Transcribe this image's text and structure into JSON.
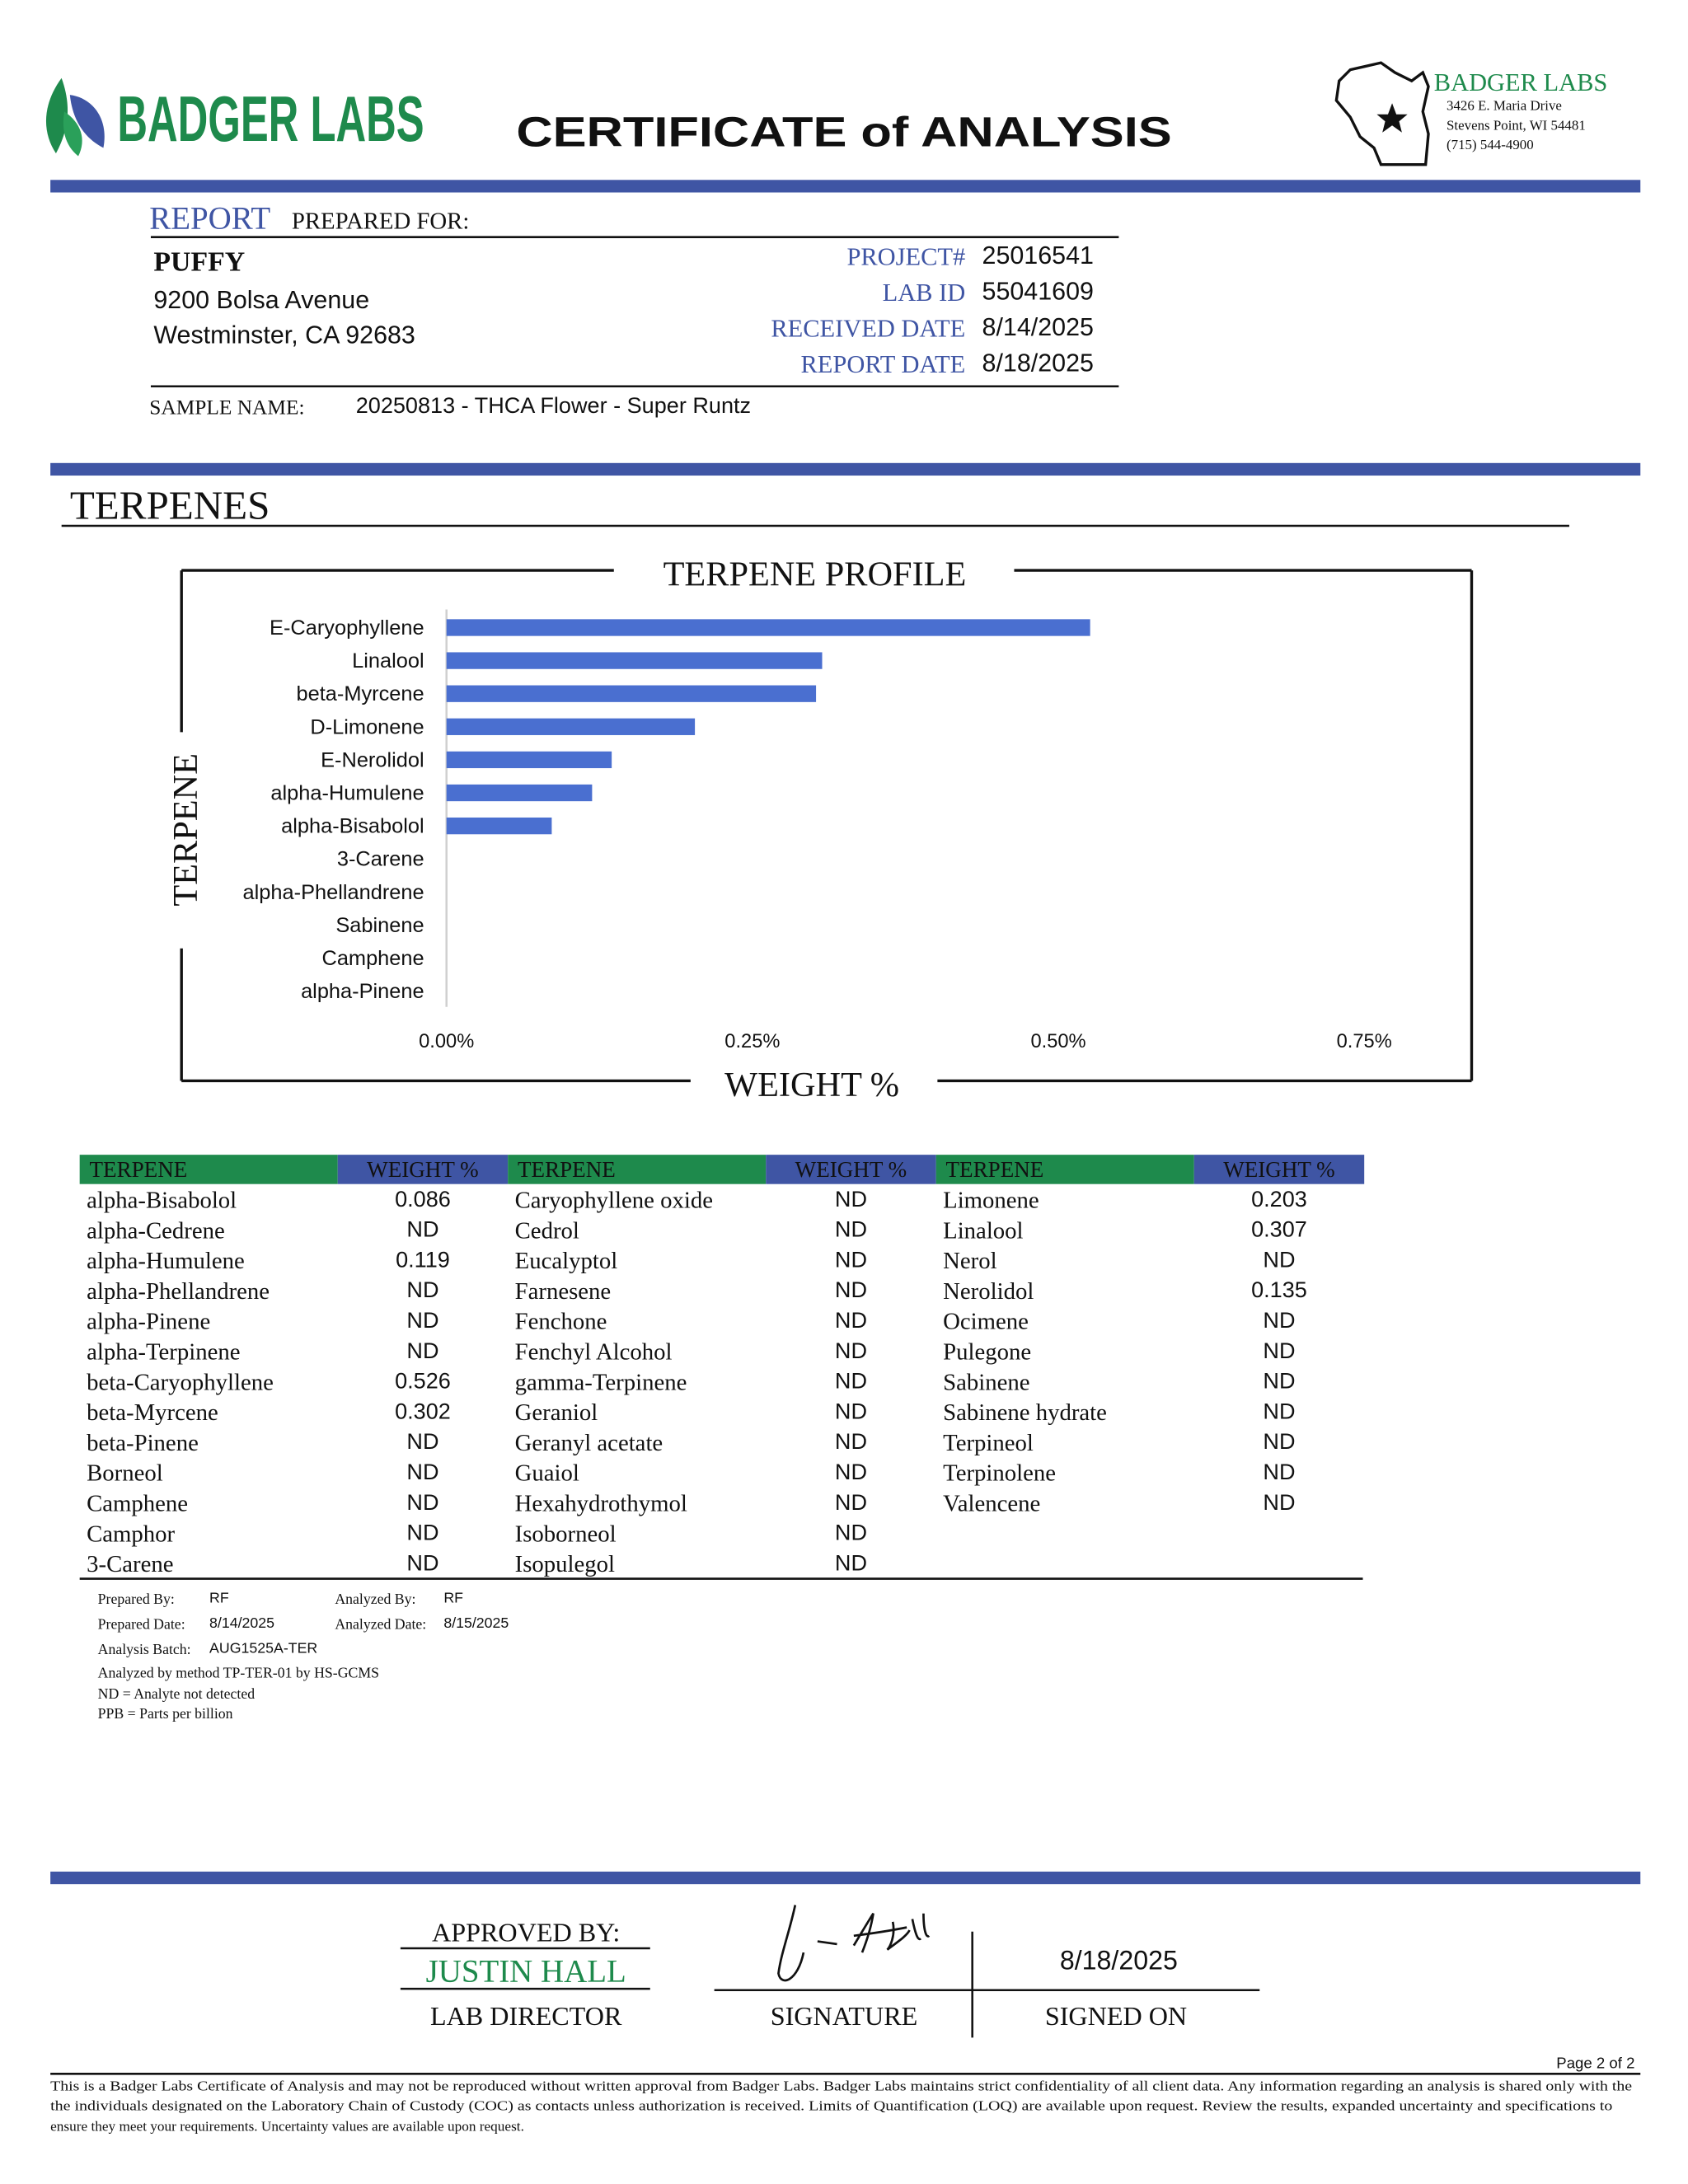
{
  "header": {
    "brand": "BADGER LABS",
    "title": "CERTIFICATE of ANALYSIS",
    "lab_name": "BADGER LABS",
    "address": [
      "3426 E. Maria Drive",
      "Stevens Point, WI 54481",
      "(715) 544-4900"
    ]
  },
  "report": {
    "heading_lead": "REPORT",
    "heading_rest": "PREPARED FOR:",
    "client": "PUFFY",
    "client_address": [
      "9200 Bolsa Avenue",
      "Westminster, CA 92683"
    ],
    "fields": [
      {
        "label": "PROJECT#",
        "value": "25016541"
      },
      {
        "label": "LAB ID",
        "value": "55041609"
      },
      {
        "label": "RECEIVED DATE",
        "value": "8/14/2025"
      },
      {
        "label": "REPORT DATE",
        "value": "8/18/2025"
      }
    ],
    "sample_label": "SAMPLE NAME:",
    "sample_name": "20250813 - THCA Flower - Super Runtz"
  },
  "section_title": "TERPENES",
  "chart_data": {
    "type": "bar",
    "orientation": "horizontal",
    "title": "TERPENE PROFILE",
    "x_label": "WEIGHT %",
    "y_label": "TERPENE",
    "categories": [
      "E-Caryophyllene",
      "Linalool",
      "beta-Myrcene",
      "D-Limonene",
      "E-Nerolidol",
      "alpha-Humulene",
      "alpha-Bisabolol",
      "3-Carene",
      "alpha-Phellandrene",
      "Sabinene",
      "Camphene",
      "alpha-Pinene"
    ],
    "values": [
      0.526,
      0.307,
      0.302,
      0.203,
      0.135,
      0.119,
      0.086,
      0,
      0,
      0,
      0,
      0
    ],
    "color": "#4a6fd0",
    "xlim": [
      0,
      0.75
    ],
    "xticks": [
      {
        "value": 0,
        "label": "0.00%"
      },
      {
        "value": 0.25,
        "label": "0.25%"
      },
      {
        "value": 0.5,
        "label": "0.50%"
      },
      {
        "value": 0.75,
        "label": "0.75%"
      }
    ],
    "grid": false
  },
  "table": {
    "headers": [
      "TERPENE",
      "WEIGHT %",
      "TERPENE",
      "WEIGHT %",
      "TERPENE",
      "WEIGHT %"
    ],
    "groups": [
      [
        [
          "alpha-Bisabolol",
          0.086
        ],
        [
          "alpha-Cedrene",
          "ND"
        ],
        [
          "alpha-Humulene",
          0.119
        ],
        [
          "alpha-Phellandrene",
          "ND"
        ],
        [
          "alpha-Pinene",
          "ND"
        ],
        [
          "alpha-Terpinene",
          "ND"
        ],
        [
          "beta-Caryophyllene",
          0.526
        ],
        [
          "beta-Myrcene",
          0.302
        ],
        [
          "beta-Pinene",
          "ND"
        ],
        [
          "Borneol",
          "ND"
        ],
        [
          "Camphene",
          "ND"
        ],
        [
          "Camphor",
          "ND"
        ],
        [
          "3-Carene",
          "ND"
        ]
      ],
      [
        [
          "Caryophyllene oxide",
          "ND"
        ],
        [
          "Cedrol",
          "ND"
        ],
        [
          "Eucalyptol",
          "ND"
        ],
        [
          "Farnesene",
          "ND"
        ],
        [
          "Fenchone",
          "ND"
        ],
        [
          "Fenchyl Alcohol",
          "ND"
        ],
        [
          "gamma-Terpinene",
          "ND"
        ],
        [
          "Geraniol",
          "ND"
        ],
        [
          "Geranyl acetate",
          "ND"
        ],
        [
          "Guaiol",
          "ND"
        ],
        [
          "Hexahydrothymol",
          "ND"
        ],
        [
          "Isoborneol",
          "ND"
        ],
        [
          "Isopulegol",
          "ND"
        ]
      ],
      [
        [
          "Limonene",
          0.203
        ],
        [
          "Linalool",
          0.307
        ],
        [
          "Nerol",
          "ND"
        ],
        [
          "Nerolidol",
          0.135
        ],
        [
          "Ocimene",
          "ND"
        ],
        [
          "Pulegone",
          "ND"
        ],
        [
          "Sabinene",
          "ND"
        ],
        [
          "Sabinene hydrate",
          "ND"
        ],
        [
          "Terpineol",
          "ND"
        ],
        [
          "Terpinolene",
          "ND"
        ],
        [
          "Valencene",
          "ND"
        ]
      ]
    ]
  },
  "notes": {
    "prepared_by_label": "Prepared By:",
    "prepared_by": "RF",
    "analyzed_by_label": "Analyzed By:",
    "analyzed_by": "RF",
    "prepared_date_label": "Prepared Date:",
    "prepared_date": "8/14/2025",
    "analyzed_date_label": "Analyzed Date:",
    "analyzed_date": "8/15/2025",
    "batch_label": "Analysis Batch:",
    "batch": "AUG1525A-TER",
    "lines": [
      "Analyzed by method TP-TER-01 by HS-GCMS",
      "ND = Analyte not detected",
      "PPB = Parts per billion"
    ]
  },
  "approval": {
    "approved_by": "APPROVED BY:",
    "name": "JUSTIN HALL",
    "role": "LAB DIRECTOR",
    "signature_label": "SIGNATURE",
    "signed_date": "8/18/2025",
    "signed_on_label": "SIGNED ON"
  },
  "page": "Page 2 of 2",
  "disclaimer": [
    "This is a Badger Labs Certificate of Analysis and may not be reproduced without written approval from Badger Labs. Badger Labs maintains strict confidentiality of all client data. Any information regarding an analysis is shared only with the",
    "the individuals designated on the Laboratory Chain of Custody (COC) as contacts unless authorization is received. Limits of Quantification (LOQ) are available upon request. Review the results, expanded uncertainty and specifications to",
    "ensure they meet your requirements. Uncertainty values are available upon request."
  ]
}
